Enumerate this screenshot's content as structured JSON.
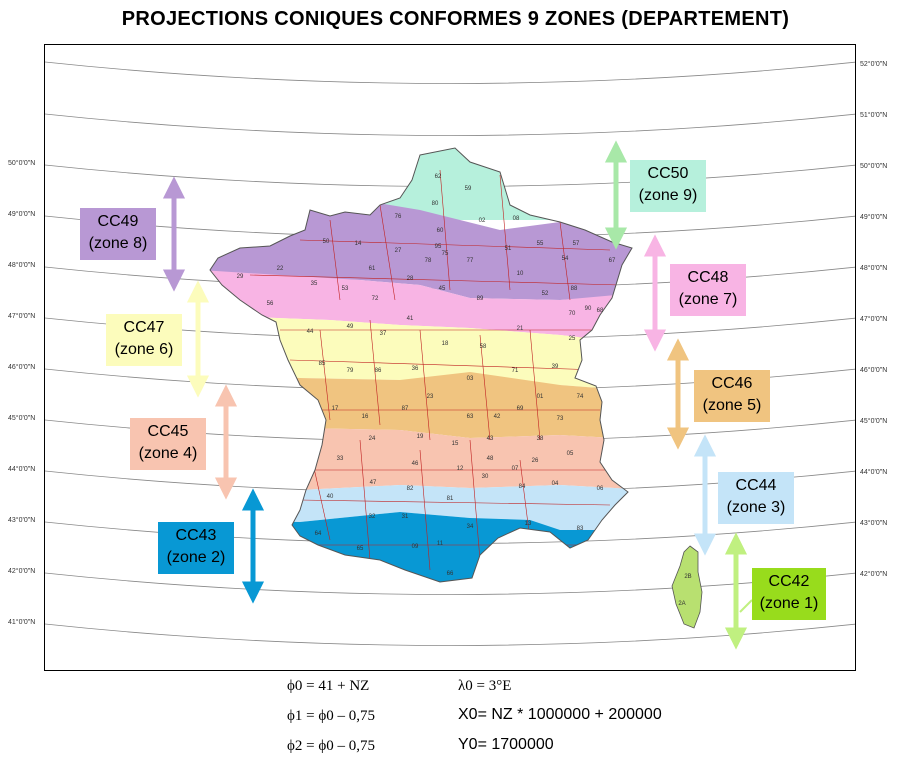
{
  "title": "PROJECTIONS CONIQUES CONFORMES 9 ZONES (DEPARTEMENT)",
  "latitudes": [
    {
      "label": "52°0'0\"N",
      "side": "right"
    },
    {
      "label": "51°0'0\"N",
      "side": "right"
    },
    {
      "label": "50°0'0\"N",
      "side": "both"
    },
    {
      "label": "49°0'0\"N",
      "side": "both"
    },
    {
      "label": "48°0'0\"N",
      "side": "both"
    },
    {
      "label": "47°0'0\"N",
      "side": "both"
    },
    {
      "label": "46°0'0\"N",
      "side": "both"
    },
    {
      "label": "45°0'0\"N",
      "side": "both"
    },
    {
      "label": "44°0'0\"N",
      "side": "both"
    },
    {
      "label": "43°0'0\"N",
      "side": "both"
    },
    {
      "label": "42°0'0\"N",
      "side": "both"
    },
    {
      "label": "41°0'0\"N",
      "side": "left"
    }
  ],
  "zones": [
    {
      "id": "CC50",
      "name": "CC50",
      "zone": "(zone 9)",
      "color": "#b6f0dc",
      "arrow": "#a8e8a8",
      "text_color": "#000000"
    },
    {
      "id": "CC49",
      "name": "CC49",
      "zone": "(zone 8)",
      "color": "#b898d4",
      "arrow": "#b898d4",
      "text_color": "#000000"
    },
    {
      "id": "CC48",
      "name": "CC48",
      "zone": "(zone 7)",
      "color": "#f8b4e4",
      "arrow": "#f8b4e4",
      "text_color": "#000000"
    },
    {
      "id": "CC47",
      "name": "CC47",
      "zone": "(zone 6)",
      "color": "#fcfcbc",
      "arrow": "#fcfcbc",
      "text_color": "#000000"
    },
    {
      "id": "CC46",
      "name": "CC46",
      "zone": "(zone 5)",
      "color": "#f0c480",
      "arrow": "#f0c480",
      "text_color": "#000000"
    },
    {
      "id": "CC45",
      "name": "CC45",
      "zone": "(zone 4)",
      "color": "#f8c4b0",
      "arrow": "#f8c4b0",
      "text_color": "#000000"
    },
    {
      "id": "CC44",
      "name": "CC44",
      "zone": "(zone 3)",
      "color": "#c4e4f8",
      "arrow": "#c4e4f8",
      "text_color": "#000000"
    },
    {
      "id": "CC43",
      "name": "CC43",
      "zone": "(zone 2)",
      "color": "#0898d4",
      "arrow": "#0898d4",
      "text_color": "#000000"
    },
    {
      "id": "CC42",
      "name": "CC42",
      "zone": "(zone 1)",
      "color": "#98dc1c",
      "arrow": "#c0f080",
      "text_color": "#000000"
    }
  ],
  "formulas": {
    "phi0": "ϕ0 = 41 + NZ",
    "phi1": "ϕ1 = ϕ0 – 0,75",
    "phi2": "ϕ2 = ϕ0 – 0,75",
    "lambda0": "λ0 = 3°E",
    "x0": "X0= NZ * 1000000 + 200000",
    "y0": "Y0= 1700000"
  },
  "departments": [
    "62",
    "59",
    "80",
    "76",
    "02",
    "08",
    "14",
    "50",
    "27",
    "60",
    "95",
    "78",
    "75",
    "93",
    "94",
    "92",
    "91",
    "77",
    "51",
    "55",
    "57",
    "54",
    "67",
    "88",
    "68",
    "29",
    "22",
    "35",
    "56",
    "53",
    "72",
    "61",
    "28",
    "45",
    "10",
    "52",
    "89",
    "21",
    "70",
    "90",
    "25",
    "44",
    "49",
    "37",
    "41",
    "18",
    "58",
    "71",
    "39",
    "85",
    "79",
    "86",
    "36",
    "03",
    "01",
    "17",
    "16",
    "87",
    "23",
    "63",
    "42",
    "69",
    "73",
    "74",
    "24",
    "19",
    "15",
    "43",
    "38",
    "33",
    "46",
    "12",
    "48",
    "07",
    "26",
    "05",
    "40",
    "47",
    "82",
    "81",
    "30",
    "84",
    "04",
    "06",
    "64",
    "32",
    "31",
    "09",
    "11",
    "34",
    "65",
    "13",
    "83",
    "66",
    "2B",
    "2A"
  ]
}
